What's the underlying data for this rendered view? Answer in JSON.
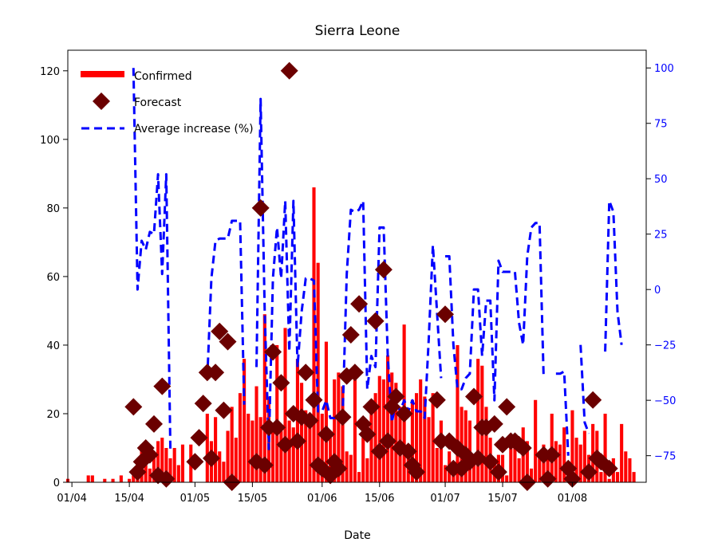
{
  "chart_data": {
    "type": "bar",
    "title": "Sierra Leone",
    "xlabel": "Date",
    "ylabel": "",
    "ylim": [
      0,
      126
    ],
    "y2lim": [
      -87,
      108
    ],
    "xlim": [
      "2020-03-31",
      "2020-08-19"
    ],
    "x_ticks": [
      {
        "date": "2020-04-01",
        "label": "01/04"
      },
      {
        "date": "2020-04-15",
        "label": "15/04"
      },
      {
        "date": "2020-05-01",
        "label": "01/05"
      },
      {
        "date": "2020-05-15",
        "label": "15/05"
      },
      {
        "date": "2020-06-01",
        "label": "01/06"
      },
      {
        "date": "2020-06-15",
        "label": "15/06"
      },
      {
        "date": "2020-07-01",
        "label": "01/07"
      },
      {
        "date": "2020-07-15",
        "label": "15/07"
      },
      {
        "date": "2020-08-01",
        "label": "01/08"
      }
    ],
    "y_ticks": [
      0,
      20,
      40,
      60,
      80,
      100,
      120
    ],
    "y2_ticks": [
      -75,
      -50,
      -25,
      0,
      25,
      50,
      75,
      100
    ],
    "legend_position": "top-left",
    "colors": {
      "confirmed": "#ff0000",
      "forecast": "#6b0000",
      "average": "#0000ff",
      "right_axis": "#0000ff"
    },
    "series": [
      {
        "name": "Confirmed",
        "kind": "bar",
        "start_date": "2020-03-31",
        "values": [
          1,
          0,
          0,
          0,
          0,
          2,
          2,
          0,
          0,
          1,
          0,
          1,
          0,
          2,
          0,
          1,
          2,
          2,
          11,
          5,
          4,
          9,
          12,
          13,
          10,
          7,
          10,
          5,
          11,
          0,
          11,
          0,
          0,
          0,
          20,
          12,
          19,
          9,
          6,
          15,
          22,
          13,
          26,
          36,
          20,
          18,
          28,
          19,
          49,
          25,
          16,
          40,
          15,
          45,
          18,
          16,
          36,
          29,
          21,
          18,
          86,
          64,
          20,
          41,
          13,
          30,
          32,
          28,
          9,
          8,
          31,
          3,
          13,
          7,
          23,
          26,
          31,
          30,
          37,
          32,
          29,
          22,
          46,
          9,
          24,
          26,
          30,
          25,
          19,
          26,
          10,
          18,
          5,
          9,
          3,
          40,
          22,
          21,
          18,
          8,
          36,
          34,
          22,
          13,
          6,
          8,
          8,
          2,
          12,
          14,
          7,
          16,
          12,
          4,
          24,
          9,
          11,
          8,
          20,
          12,
          11,
          16,
          1,
          21,
          13,
          11,
          15,
          8,
          17,
          15,
          3,
          20,
          1,
          7,
          3,
          17,
          9,
          7,
          3
        ],
        "format": "daily counts from start_date"
      },
      {
        "name": "Forecast",
        "kind": "marker",
        "points": [
          [
            "2020-04-16",
            22
          ],
          [
            "2020-04-17",
            3
          ],
          [
            "2020-04-18",
            6
          ],
          [
            "2020-04-19",
            10
          ],
          [
            "2020-04-20",
            8
          ],
          [
            "2020-04-21",
            17
          ],
          [
            "2020-04-22",
            2
          ],
          [
            "2020-04-23",
            28
          ],
          [
            "2020-04-24",
            1
          ],
          [
            "2020-05-01",
            6
          ],
          [
            "2020-05-02",
            13
          ],
          [
            "2020-05-03",
            23
          ],
          [
            "2020-05-04",
            32
          ],
          [
            "2020-05-05",
            7
          ],
          [
            "2020-05-06",
            32
          ],
          [
            "2020-05-07",
            44
          ],
          [
            "2020-05-08",
            21
          ],
          [
            "2020-05-09",
            41
          ],
          [
            "2020-05-10",
            0
          ],
          [
            "2020-05-16",
            6
          ],
          [
            "2020-05-17",
            80
          ],
          [
            "2020-05-18",
            5
          ],
          [
            "2020-05-19",
            16
          ],
          [
            "2020-05-20",
            38
          ],
          [
            "2020-05-21",
            16
          ],
          [
            "2020-05-22",
            29
          ],
          [
            "2020-05-23",
            11
          ],
          [
            "2020-05-24",
            120
          ],
          [
            "2020-05-25",
            20
          ],
          [
            "2020-05-26",
            12
          ],
          [
            "2020-05-27",
            19
          ],
          [
            "2020-05-28",
            32
          ],
          [
            "2020-05-29",
            18
          ],
          [
            "2020-05-30",
            24
          ],
          [
            "2020-05-31",
            5
          ],
          [
            "2020-06-01",
            4
          ],
          [
            "2020-06-02",
            14
          ],
          [
            "2020-06-03",
            2
          ],
          [
            "2020-06-04",
            6
          ],
          [
            "2020-06-05",
            4
          ],
          [
            "2020-06-06",
            19
          ],
          [
            "2020-06-07",
            31
          ],
          [
            "2020-06-08",
            43
          ],
          [
            "2020-06-09",
            32
          ],
          [
            "2020-06-10",
            52
          ],
          [
            "2020-06-11",
            17
          ],
          [
            "2020-06-12",
            14
          ],
          [
            "2020-06-13",
            22
          ],
          [
            "2020-06-14",
            47
          ],
          [
            "2020-06-15",
            9
          ],
          [
            "2020-06-16",
            62
          ],
          [
            "2020-06-17",
            12
          ],
          [
            "2020-06-18",
            22
          ],
          [
            "2020-06-19",
            25
          ],
          [
            "2020-06-20",
            10
          ],
          [
            "2020-06-21",
            20
          ],
          [
            "2020-06-22",
            9
          ],
          [
            "2020-06-23",
            5
          ],
          [
            "2020-06-24",
            3
          ],
          [
            "2020-06-29",
            24
          ],
          [
            "2020-06-30",
            12
          ],
          [
            "2020-07-01",
            49
          ],
          [
            "2020-07-02",
            12
          ],
          [
            "2020-07-03",
            4
          ],
          [
            "2020-07-04",
            10
          ],
          [
            "2020-07-05",
            4
          ],
          [
            "2020-07-06",
            8
          ],
          [
            "2020-07-07",
            6
          ],
          [
            "2020-07-08",
            25
          ],
          [
            "2020-07-09",
            7
          ],
          [
            "2020-07-10",
            16
          ],
          [
            "2020-07-11",
            16
          ],
          [
            "2020-07-12",
            6
          ],
          [
            "2020-07-13",
            17
          ],
          [
            "2020-07-14",
            3
          ],
          [
            "2020-07-15",
            11
          ],
          [
            "2020-07-16",
            22
          ],
          [
            "2020-07-17",
            12
          ],
          [
            "2020-07-18",
            12
          ],
          [
            "2020-07-19",
            11
          ],
          [
            "2020-07-20",
            10
          ],
          [
            "2020-07-21",
            0
          ],
          [
            "2020-07-25",
            8
          ],
          [
            "2020-07-26",
            1
          ],
          [
            "2020-07-27",
            8
          ],
          [
            "2020-07-31",
            4
          ],
          [
            "2020-08-01",
            1
          ],
          [
            "2020-08-05",
            3
          ],
          [
            "2020-08-06",
            24
          ],
          [
            "2020-08-07",
            7
          ],
          [
            "2020-08-08",
            6
          ],
          [
            "2020-08-10",
            4
          ]
        ]
      },
      {
        "name": "Average increase (%)",
        "kind": "line",
        "axis": "right",
        "points": [
          [
            "2020-04-16",
            100
          ],
          [
            "2020-04-17",
            0
          ],
          [
            "2020-04-18",
            22
          ],
          [
            "2020-04-19",
            18
          ],
          [
            "2020-04-20",
            26
          ],
          [
            "2020-04-21",
            25
          ],
          [
            "2020-04-22",
            52
          ],
          [
            "2020-04-23",
            7
          ],
          [
            "2020-04-24",
            52
          ],
          [
            "2020-04-25",
            -72
          ],
          null,
          [
            "2020-05-04",
            -40
          ],
          [
            "2020-05-05",
            5
          ],
          [
            "2020-05-06",
            22
          ],
          [
            "2020-05-07",
            23
          ],
          [
            "2020-05-08",
            23
          ],
          [
            "2020-05-09",
            23
          ],
          [
            "2020-05-10",
            31
          ],
          [
            "2020-05-11",
            31
          ],
          [
            "2020-05-12",
            31
          ],
          [
            "2020-05-13",
            -52
          ],
          null,
          [
            "2020-05-16",
            -35
          ],
          [
            "2020-05-17",
            86
          ],
          [
            "2020-05-18",
            -10
          ],
          [
            "2020-05-19",
            -72
          ],
          [
            "2020-05-20",
            5
          ],
          [
            "2020-05-21",
            28
          ],
          [
            "2020-05-22",
            5
          ],
          [
            "2020-05-23",
            40
          ],
          [
            "2020-05-24",
            -28
          ],
          [
            "2020-05-25",
            40
          ],
          [
            "2020-05-26",
            -35
          ],
          [
            "2020-05-27",
            -10
          ],
          [
            "2020-05-28",
            5
          ],
          [
            "2020-05-29",
            5
          ],
          [
            "2020-05-30",
            4
          ],
          [
            "2020-05-31",
            -55
          ],
          [
            "2020-06-01",
            -55
          ],
          [
            "2020-06-02",
            -50
          ],
          [
            "2020-06-03",
            -58
          ],
          [
            "2020-06-04",
            -58
          ],
          [
            "2020-06-05",
            -57
          ],
          [
            "2020-06-06",
            -57
          ],
          [
            "2020-06-07",
            7
          ],
          [
            "2020-06-08",
            36
          ],
          [
            "2020-06-09",
            35
          ],
          [
            "2020-06-10",
            36
          ],
          [
            "2020-06-11",
            40
          ],
          [
            "2020-06-12",
            -45
          ],
          [
            "2020-06-13",
            -30
          ],
          [
            "2020-06-14",
            -35
          ],
          [
            "2020-06-15",
            28
          ],
          [
            "2020-06-16",
            28
          ],
          [
            "2020-06-17",
            -30
          ],
          [
            "2020-06-18",
            -60
          ],
          [
            "2020-06-19",
            -50
          ],
          [
            "2020-06-20",
            -55
          ],
          [
            "2020-06-21",
            -50
          ],
          [
            "2020-06-22",
            -55
          ],
          [
            "2020-06-23",
            -50
          ],
          [
            "2020-06-24",
            -55
          ],
          [
            "2020-06-25",
            -55
          ],
          [
            "2020-06-26",
            -58
          ],
          [
            "2020-06-27",
            -22
          ],
          [
            "2020-06-28",
            20
          ],
          [
            "2020-06-29",
            -10
          ],
          [
            "2020-06-30",
            -40
          ],
          null,
          [
            "2020-07-01",
            15
          ],
          [
            "2020-07-02",
            15
          ],
          [
            "2020-07-03",
            -25
          ],
          [
            "2020-07-04",
            -45
          ],
          [
            "2020-07-05",
            -45
          ],
          [
            "2020-07-06",
            -40
          ],
          [
            "2020-07-07",
            -38
          ],
          [
            "2020-07-08",
            0
          ],
          [
            "2020-07-09",
            0
          ],
          [
            "2020-07-10",
            -30
          ],
          [
            "2020-07-11",
            -5
          ],
          [
            "2020-07-12",
            -5
          ],
          [
            "2020-07-13",
            -50
          ],
          [
            "2020-07-14",
            13
          ],
          [
            "2020-07-15",
            8
          ],
          [
            "2020-07-16",
            8
          ],
          [
            "2020-07-17",
            8
          ],
          [
            "2020-07-18",
            8
          ],
          [
            "2020-07-19",
            -15
          ],
          [
            "2020-07-20",
            -25
          ],
          [
            "2020-07-21",
            15
          ],
          [
            "2020-07-22",
            28
          ],
          [
            "2020-07-23",
            30
          ],
          [
            "2020-07-24",
            30
          ],
          [
            "2020-07-25",
            -40
          ],
          null,
          [
            "2020-07-28",
            -38
          ],
          [
            "2020-07-29",
            -38
          ],
          [
            "2020-07-30",
            -37
          ],
          [
            "2020-07-31",
            -75
          ],
          null,
          [
            "2020-08-03",
            -25
          ],
          [
            "2020-08-04",
            -60
          ],
          [
            "2020-08-05",
            -65
          ],
          null,
          [
            "2020-08-09",
            -28
          ],
          [
            "2020-08-10",
            40
          ],
          [
            "2020-08-11",
            35
          ],
          [
            "2020-08-12",
            -10
          ],
          [
            "2020-08-13",
            -25
          ]
        ]
      }
    ]
  }
}
